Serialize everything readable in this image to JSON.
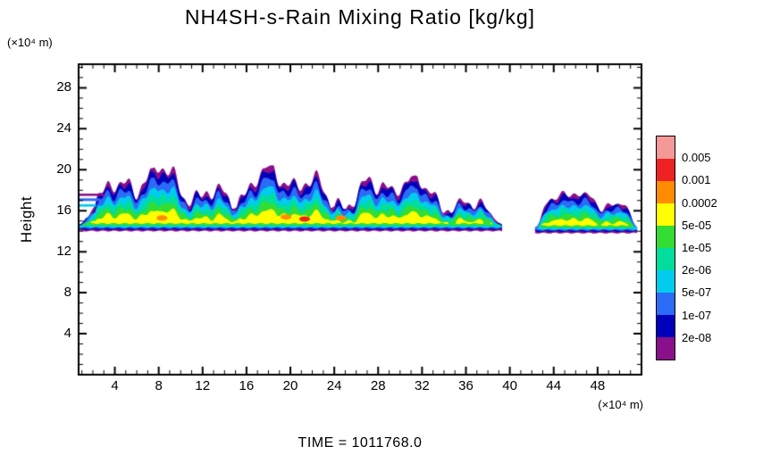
{
  "chart_data": {
    "type": "heatmap",
    "title": "NH4SH-s-Rain Mixing Ratio [kg/kg]",
    "ylabel": "Height",
    "y_units": "(×10⁴ m)",
    "x_units": "(×10⁴ m)",
    "time_label": "TIME = 1011768.0",
    "xlim": [
      0.7,
      52.0
    ],
    "ylim": [
      0,
      30.3
    ],
    "xticks": [
      4,
      8,
      12,
      16,
      20,
      24,
      28,
      32,
      36,
      40,
      44,
      48
    ],
    "yticks": [
      4,
      8,
      12,
      16,
      20,
      24,
      28
    ],
    "x_minor_step": 1,
    "y_minor_step": 1,
    "grid": false,
    "legend_position": "colorbar-right",
    "levels": [
      2e-08,
      1e-07,
      5e-07,
      2e-06,
      1e-05,
      5e-05,
      0.0002,
      0.001,
      0.005
    ],
    "colorbar": {
      "labels_top_to_bottom": [
        "0.005",
        "0.001",
        "0.0002",
        "5e-05",
        "1e-05",
        "2e-06",
        "5e-07",
        "1e-07",
        "2e-08"
      ],
      "colors_top_to_bottom": [
        "#f59898",
        "#ee2222",
        "#ff8c00",
        "#ffff00",
        "#33dd33",
        "#00dd9d",
        "#00cdee",
        "#2b6bf5",
        "#0000bb",
        "#8a0f8a"
      ]
    },
    "cloud_bands": [
      {
        "x_start": 0.7,
        "x_end": 39.4,
        "base": 14.3,
        "top_min": 16.3,
        "top_max": 20.3,
        "roughness": 1.0,
        "seed": 3.7,
        "tail_decay": 0.35,
        "left_streaks": true
      },
      {
        "x_start": 42.3,
        "x_end": 51.7,
        "base": 14.1,
        "top_min": 15.6,
        "top_max": 19.0,
        "roughness": 0.55,
        "seed": 9.1,
        "tail_decay": 0.0,
        "left_streaks": false
      }
    ],
    "core_specks": [
      {
        "x": 8.3,
        "y": 15.3,
        "color": "#ff8c00"
      },
      {
        "x": 19.6,
        "y": 15.4,
        "color": "#ff8c00"
      },
      {
        "x": 21.3,
        "y": 15.2,
        "color": "#ee2222"
      },
      {
        "x": 24.6,
        "y": 15.3,
        "color": "#ff8c00"
      }
    ]
  }
}
